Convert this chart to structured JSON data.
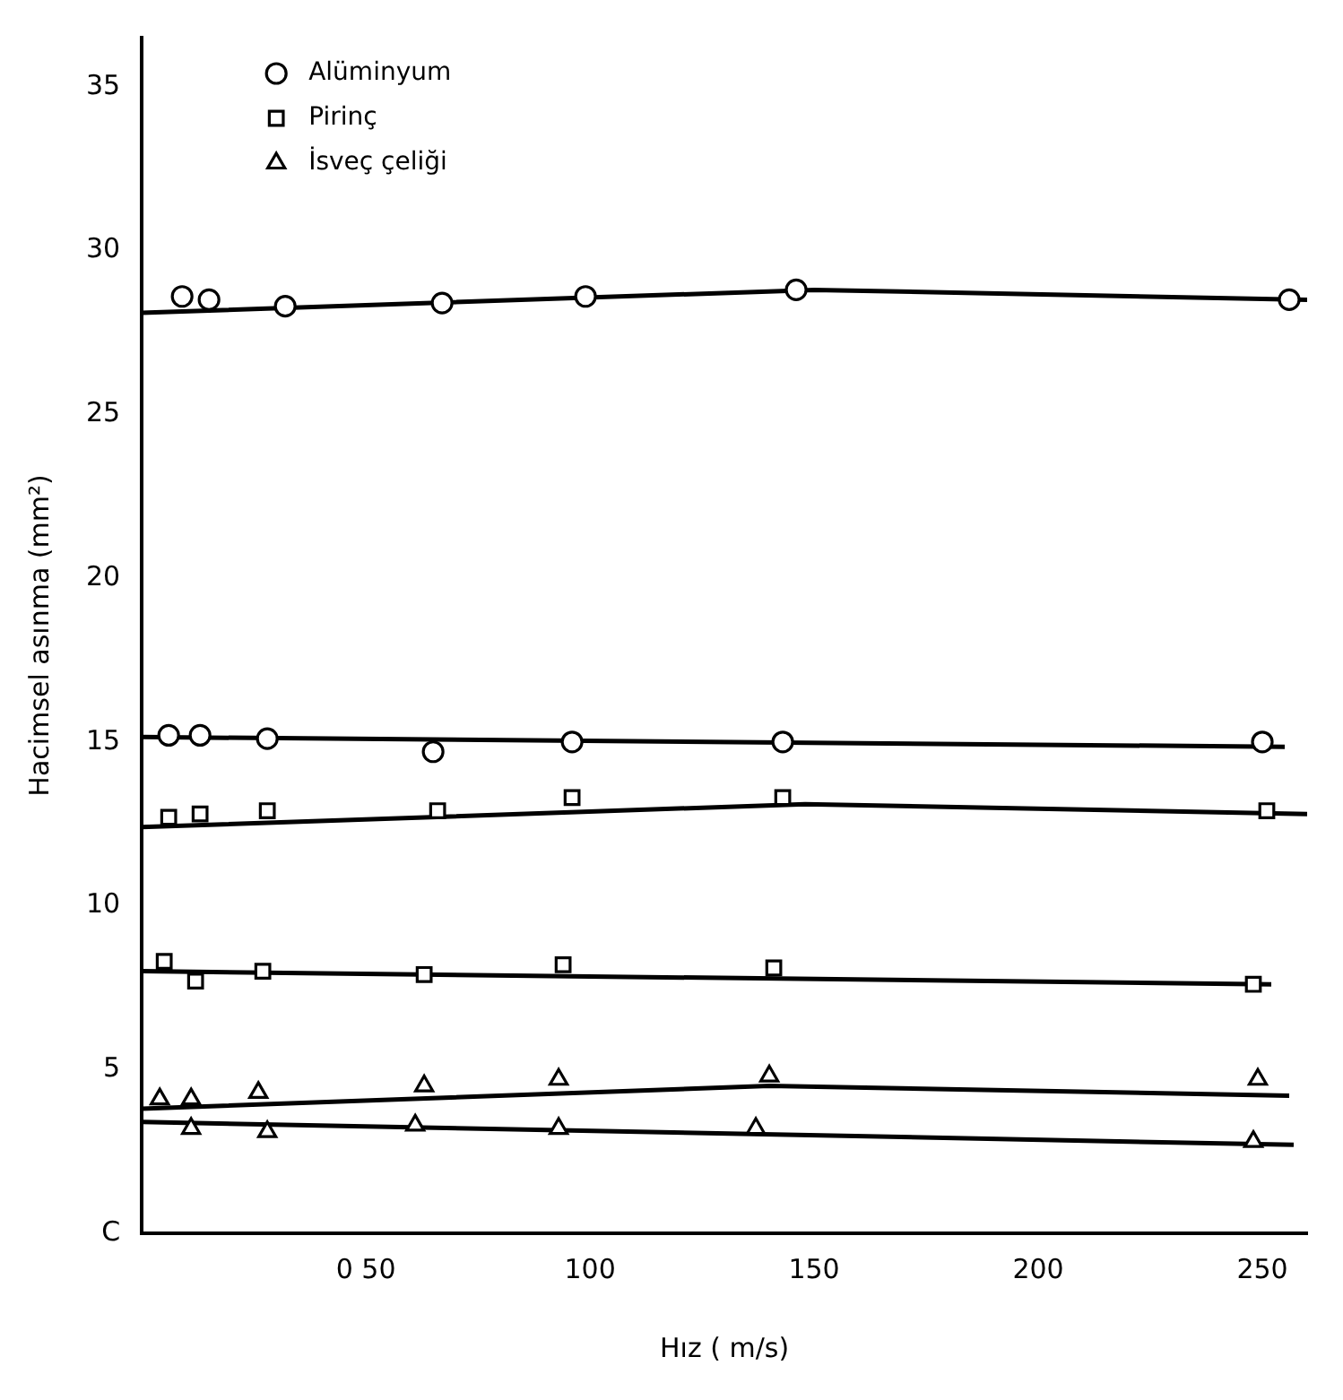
{
  "chart_data": {
    "type": "scatter",
    "xlabel": "Hız ( m/s)",
    "ylabel": "Hacimsel asınma (mm²)",
    "xlim": [
      0,
      260
    ],
    "xticks": [
      {
        "value": 50,
        "label": "0 50"
      },
      100,
      150,
      200,
      250
    ],
    "ylim": [
      0,
      36.5
    ],
    "yticks": [
      {
        "value": 0,
        "label": "C"
      },
      5,
      10,
      15,
      20,
      25,
      30,
      35
    ],
    "grid": false,
    "legend": "top left",
    "series": [
      {
        "name": "Alüminyum",
        "type": "scatter",
        "marker": "circle",
        "color": "#000000",
        "x": [
          9,
          15,
          32,
          67,
          99,
          146,
          256
        ],
        "values": [
          28.6,
          28.5,
          28.3,
          28.4,
          28.6,
          28.8,
          28.5
        ]
      },
      {
        "type": "line",
        "marker": "none",
        "color": "#000000",
        "x": [
          0,
          150,
          260
        ],
        "values": [
          28.1,
          28.8,
          28.5
        ]
      },
      {
        "type": "scatter",
        "marker": "circle",
        "color": "#000000",
        "x": [
          6,
          13,
          28,
          65,
          96,
          143,
          250
        ],
        "values": [
          15.2,
          15.2,
          15.1,
          14.7,
          15.0,
          15.0,
          15.0
        ]
      },
      {
        "type": "line",
        "marker": "none",
        "color": "#000000",
        "x": [
          0,
          255
        ],
        "values": [
          15.15,
          14.85
        ]
      },
      {
        "name": "Pirinç",
        "type": "scatter",
        "marker": "square",
        "color": "#000000",
        "x": [
          6,
          13,
          28,
          66,
          96,
          143,
          251
        ],
        "values": [
          12.7,
          12.8,
          12.9,
          12.9,
          13.3,
          13.3,
          12.9
        ]
      },
      {
        "type": "line",
        "marker": "none",
        "color": "#000000",
        "x": [
          0,
          148,
          260
        ],
        "values": [
          12.4,
          13.1,
          12.8
        ]
      },
      {
        "type": "scatter",
        "marker": "square",
        "color": "#000000",
        "x": [
          5,
          12,
          27,
          63,
          94,
          141,
          248
        ],
        "values": [
          8.3,
          7.7,
          8.0,
          7.9,
          8.2,
          8.1,
          7.6
        ]
      },
      {
        "type": "line",
        "marker": "none",
        "color": "#000000",
        "x": [
          0,
          252
        ],
        "values": [
          8.0,
          7.6
        ]
      },
      {
        "name": "İsveç çeliği",
        "type": "scatter",
        "marker": "triangle",
        "color": "#000000",
        "x": [
          4,
          11,
          26,
          63,
          93,
          140,
          249
        ],
        "values": [
          4.1,
          4.1,
          4.3,
          4.5,
          4.7,
          4.8,
          4.7
        ]
      },
      {
        "type": "line",
        "marker": "none",
        "color": "#000000",
        "x": [
          0,
          140,
          256
        ],
        "values": [
          3.8,
          4.5,
          4.2
        ]
      },
      {
        "type": "scatter",
        "marker": "triangle",
        "color": "#000000",
        "x": [
          11,
          28,
          61,
          93,
          137,
          248
        ],
        "values": [
          3.2,
          3.1,
          3.3,
          3.2,
          3.2,
          2.8
        ]
      },
      {
        "type": "line",
        "marker": "none",
        "color": "#000000",
        "x": [
          0,
          257
        ],
        "values": [
          3.4,
          2.7
        ]
      }
    ]
  }
}
